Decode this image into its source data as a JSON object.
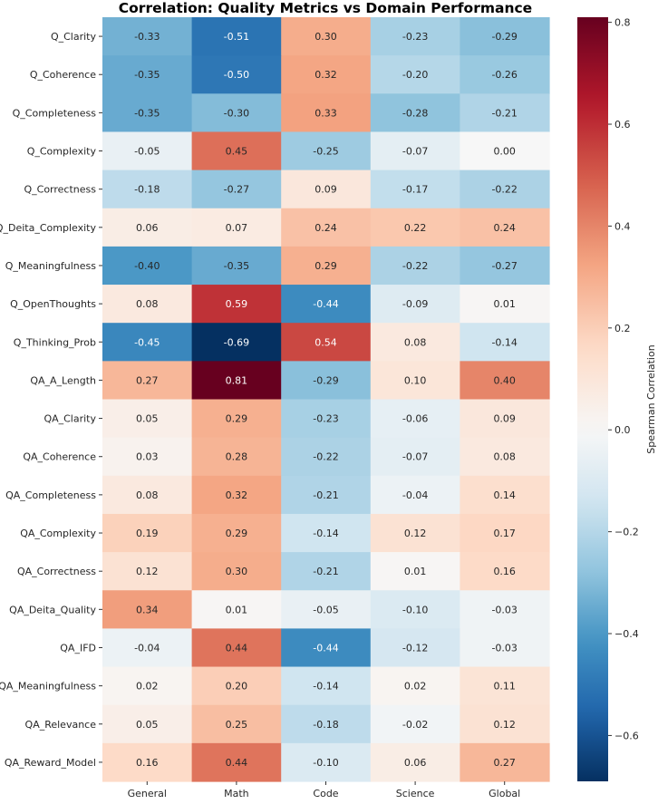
{
  "chart_data": {
    "type": "heatmap",
    "title": "Correlation: Quality Metrics vs Domain Performance",
    "xlabel": "",
    "ylabel": "",
    "columns": [
      "General",
      "Math",
      "Code",
      "Science",
      "Global"
    ],
    "rows": [
      "Q_Clarity",
      "Q_Coherence",
      "Q_Completeness",
      "Q_Complexity",
      "Q_Correctness",
      "Q_Deita_Complexity",
      "Q_Meaningfulness",
      "Q_OpenThoughts",
      "Q_Thinking_Prob",
      "QA_A_Length",
      "QA_Clarity",
      "QA_Coherence",
      "QA_Completeness",
      "QA_Complexity",
      "QA_Correctness",
      "QA_Deita_Quality",
      "QA_IFD",
      "QA_Meaningfulness",
      "QA_Relevance",
      "QA_Reward_Model"
    ],
    "values": [
      [
        -0.33,
        -0.51,
        0.3,
        -0.23,
        -0.29
      ],
      [
        -0.35,
        -0.5,
        0.32,
        -0.2,
        -0.26
      ],
      [
        -0.35,
        -0.3,
        0.33,
        -0.28,
        -0.21
      ],
      [
        -0.05,
        0.45,
        -0.25,
        -0.07,
        0.0
      ],
      [
        -0.18,
        -0.27,
        0.09,
        -0.17,
        -0.22
      ],
      [
        0.06,
        0.07,
        0.24,
        0.22,
        0.24
      ],
      [
        -0.4,
        -0.35,
        0.29,
        -0.22,
        -0.27
      ],
      [
        0.08,
        0.59,
        -0.44,
        -0.09,
        0.01
      ],
      [
        -0.45,
        -0.69,
        0.54,
        0.08,
        -0.14
      ],
      [
        0.27,
        0.81,
        -0.29,
        0.1,
        0.4
      ],
      [
        0.05,
        0.29,
        -0.23,
        -0.06,
        0.09
      ],
      [
        0.03,
        0.28,
        -0.22,
        -0.07,
        0.08
      ],
      [
        0.08,
        0.32,
        -0.21,
        -0.04,
        0.14
      ],
      [
        0.19,
        0.29,
        -0.14,
        0.12,
        0.17
      ],
      [
        0.12,
        0.3,
        -0.21,
        0.01,
        0.16
      ],
      [
        0.34,
        0.01,
        -0.05,
        -0.1,
        -0.03
      ],
      [
        -0.04,
        0.44,
        -0.44,
        -0.12,
        -0.03
      ],
      [
        0.02,
        0.2,
        -0.14,
        0.02,
        0.11
      ],
      [
        0.05,
        0.25,
        -0.18,
        -0.02,
        0.12
      ],
      [
        0.16,
        0.44,
        -0.1,
        0.06,
        0.27
      ]
    ],
    "color_scale": {
      "name": "RdBu_r",
      "center": 0.0,
      "vmin": -0.69,
      "vmax": 0.81,
      "label": "Spearman Correlation",
      "ticks": [
        -0.6,
        -0.4,
        -0.2,
        0.0,
        0.2,
        0.4,
        0.6,
        0.8
      ],
      "tick_labels": [
        "−0.6",
        "−0.4",
        "−0.2",
        "0.0",
        "0.2",
        "0.4",
        "0.6",
        "0.8"
      ]
    },
    "annotations": true,
    "annotation_format": "2 decimals",
    "grid": false,
    "colorbar_position": "right"
  }
}
